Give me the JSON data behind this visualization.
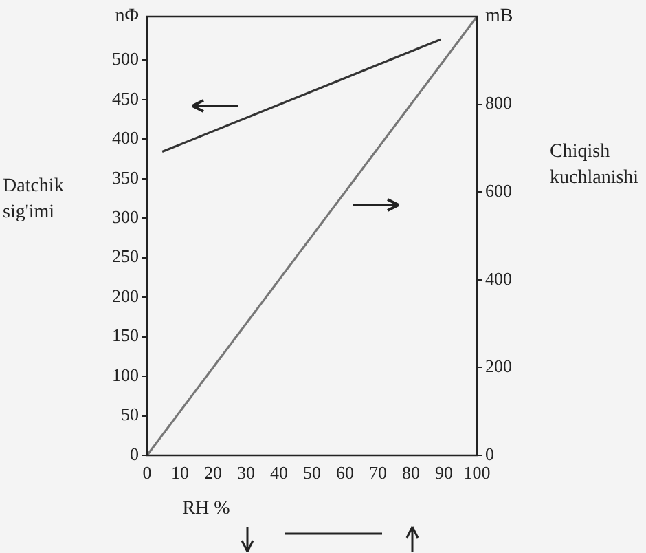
{
  "chart_data": {
    "type": "line",
    "xlabel": "RH %",
    "ylabel": "Datchik sig'imi",
    "y2label": "Chiqish kuchlanishi",
    "annotations": [
      "nΦ",
      "mB"
    ],
    "series": [
      {
        "color": "#333333",
        "x": [
          4.6,
          89
        ],
        "values": [
          384,
          526
        ]
      },
      {
        "color": "#777777",
        "axis": "y2",
        "x": [
          0,
          100
        ],
        "values": [
          0,
          1000
        ]
      }
    ],
    "xlim": [
      0,
      100
    ],
    "xticks": [
      0,
      10,
      20,
      30,
      40,
      50,
      60,
      70,
      80,
      90,
      100
    ],
    "ylim": [
      0,
      555
    ],
    "yticks": [
      0,
      50,
      100,
      150,
      200,
      250,
      300,
      350,
      400,
      450,
      500
    ],
    "y2lim": [
      0,
      1000
    ],
    "y2ticks": [
      0,
      200,
      400,
      600,
      800
    ],
    "grid": false,
    "legend": false,
    "marker": "none",
    "line_style": "solid"
  }
}
